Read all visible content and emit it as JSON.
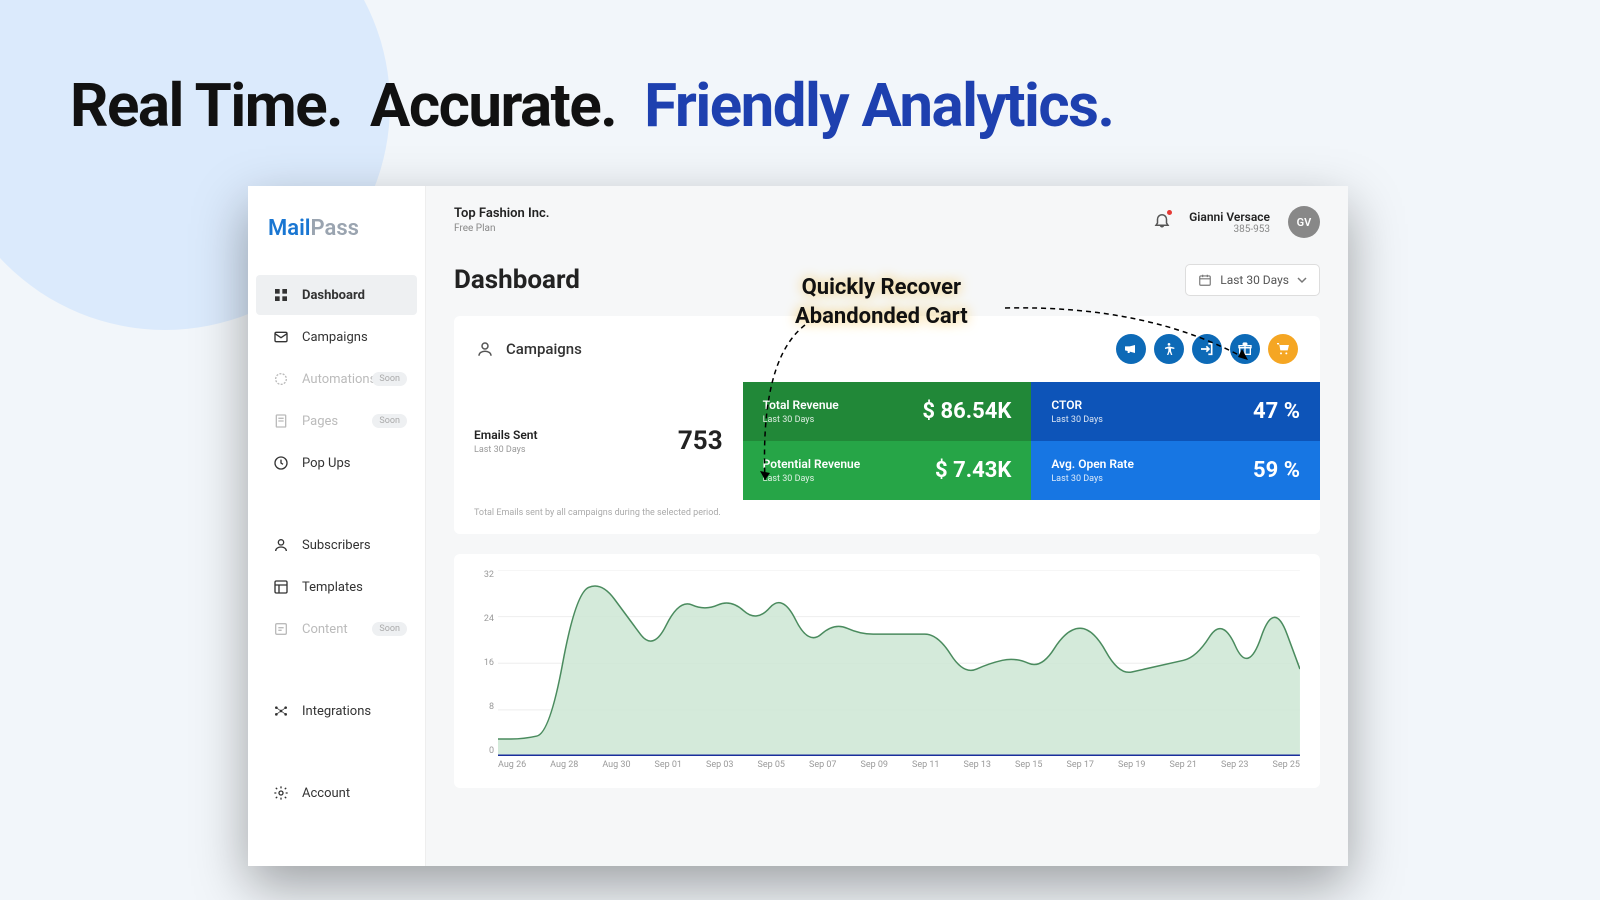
{
  "headline": {
    "part1": "Real Time.",
    "part2": "Accurate.",
    "part3": "Friendly Analytics."
  },
  "callout": {
    "line1": "Quickly Recover",
    "line2": "Abandonded Cart"
  },
  "logo": {
    "part1": "Mail",
    "part2": "Pass"
  },
  "sidebar": {
    "items": [
      {
        "label": "Dashboard",
        "icon": "grid",
        "active": true
      },
      {
        "label": "Campaigns",
        "icon": "mail"
      },
      {
        "label": "Automations",
        "icon": "auto",
        "disabled": true,
        "soon": true
      },
      {
        "label": "Pages",
        "icon": "page",
        "disabled": true,
        "soon": true
      },
      {
        "label": "Pop Ups",
        "icon": "clock"
      }
    ],
    "group2": [
      {
        "label": "Subscribers",
        "icon": "person"
      },
      {
        "label": "Templates",
        "icon": "template"
      },
      {
        "label": "Content",
        "icon": "content",
        "disabled": true,
        "soon": true
      }
    ],
    "group3": [
      {
        "label": "Integrations",
        "icon": "hub"
      }
    ],
    "group4": [
      {
        "label": "Account",
        "icon": "gear"
      }
    ],
    "soon_label": "Soon"
  },
  "topbar": {
    "company": "Top Fashion Inc.",
    "plan": "Free Plan",
    "user_name": "Gianni Versace",
    "user_id": "385-953",
    "avatar": "GV"
  },
  "page": {
    "title": "Dashboard",
    "date_range": "Last 30 Days"
  },
  "campaigns": {
    "title": "Campaigns",
    "action_icons": [
      {
        "name": "megaphone",
        "color": "blue"
      },
      {
        "name": "accessibility",
        "color": "blue"
      },
      {
        "name": "exit",
        "color": "blue"
      },
      {
        "name": "gift",
        "color": "blue"
      },
      {
        "name": "cart",
        "color": "orange"
      }
    ]
  },
  "metrics": {
    "emails_sent": {
      "label": "Emails Sent",
      "sub": "Last 30 Days",
      "value": "753"
    },
    "total_revenue": {
      "label": "Total Revenue",
      "sub": "Last 30 Days",
      "value": "$ 86.54K"
    },
    "ctor": {
      "label": "CTOR",
      "sub": "Last 30 Days",
      "value": "47 %"
    },
    "potential_revenue": {
      "label": "Potential Revenue",
      "sub": "Last 30 Days",
      "value": "$ 7.43K"
    },
    "avg_open": {
      "label": "Avg. Open Rate",
      "sub": "Last 30 Days",
      "value": "59 %"
    },
    "footnote": "Total Emails sent by all campaigns during the selected period."
  },
  "chart": {
    "type": "area",
    "y_ticks": [
      "32",
      "24",
      "16",
      "8",
      "0"
    ],
    "x_ticks": [
      "Aug 26",
      "Aug 28",
      "Aug 30",
      "Sep 01",
      "Sep 03",
      "Sep 05",
      "Sep 07",
      "Sep 09",
      "Sep 11",
      "Sep 13",
      "Sep 15",
      "Sep 17",
      "Sep 19",
      "Sep 21",
      "Sep 23",
      "Sep 25"
    ],
    "ylim": [
      0,
      32
    ],
    "values": [
      3,
      3,
      4,
      28,
      30,
      24,
      18,
      27,
      25,
      27,
      23,
      28,
      19,
      23,
      21,
      21,
      21,
      21,
      14,
      16,
      17,
      15,
      22,
      22,
      14,
      15,
      16,
      17,
      24,
      14,
      27,
      15
    ],
    "line_color": "#4a8b5e",
    "fill_color": "#cde6d3",
    "baseline_color": "#1a2f9c",
    "grid_color": "#eeeeee",
    "background": "#ffffff",
    "axis_fontsize": 9,
    "axis_color": "#999999"
  },
  "colors": {
    "accent_blue": "#1e40af",
    "sidebar_active": "#eef0f2",
    "green_dark": "#218838",
    "green": "#26a547",
    "blue_dark": "#0d54b8",
    "blue": "#1776e3",
    "icon_blue": "#0d6ab7",
    "icon_orange": "#f5a623"
  }
}
